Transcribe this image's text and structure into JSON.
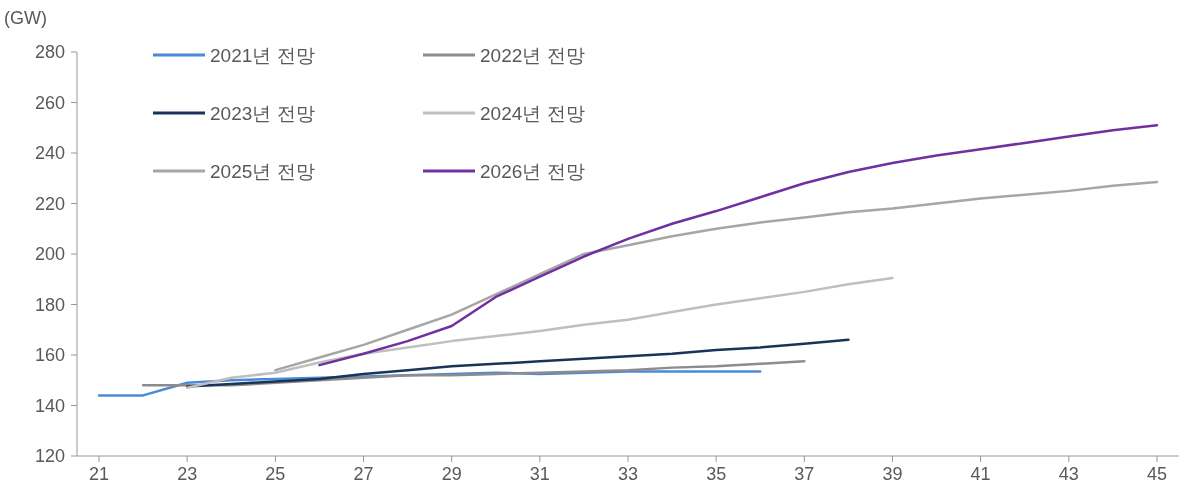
{
  "chart_data": {
    "type": "line",
    "ylabel": "(GW)",
    "xlim": [
      20.5,
      45.5
    ],
    "xticks": [
      21,
      23,
      25,
      27,
      29,
      31,
      33,
      35,
      37,
      39,
      41,
      43,
      45
    ],
    "ylim": [
      120,
      280
    ],
    "yticks": [
      120,
      140,
      160,
      180,
      200,
      220,
      240,
      260,
      280
    ],
    "legend": "top left",
    "series": [
      {
        "name": "2021년 전망",
        "color": "#4a8ad6",
        "x": [
          21,
          22,
          23,
          24,
          25,
          26,
          27,
          28,
          29,
          30,
          31,
          32,
          33,
          34,
          35,
          36
        ],
        "values": [
          144,
          144,
          149,
          150,
          150.5,
          151,
          151.5,
          152,
          152.5,
          153,
          152.5,
          153,
          153.5,
          153.5,
          153.5,
          153.5
        ]
      },
      {
        "name": "2022년 전망",
        "color": "#8c8c8c",
        "x": [
          22,
          23,
          24,
          25,
          26,
          27,
          28,
          29,
          30,
          31,
          32,
          33,
          34,
          35,
          36,
          37
        ],
        "values": [
          148,
          148,
          148,
          149,
          150,
          151,
          152,
          152,
          152.5,
          153,
          153.5,
          154,
          155,
          155.5,
          156.5,
          157.5
        ]
      },
      {
        "name": "2023년 전망",
        "color": "#1a3358",
        "x": [
          23,
          24,
          25,
          26,
          27,
          28,
          29,
          30,
          31,
          32,
          33,
          34,
          35,
          36,
          37,
          38
        ],
        "values": [
          147.5,
          148.5,
          149.5,
          150.5,
          152.5,
          154,
          155.5,
          156.5,
          157.5,
          158.5,
          159.5,
          160.5,
          162,
          163,
          164.5,
          166
        ]
      },
      {
        "name": "2024년 전망",
        "color": "#bfbfbf",
        "x": [
          23,
          24,
          25,
          26,
          27,
          28,
          29,
          30,
          31,
          32,
          33,
          34,
          35,
          36,
          37,
          38,
          39
        ],
        "values": [
          147,
          151,
          153,
          157,
          160.5,
          163,
          165.5,
          167.5,
          169.5,
          172,
          174,
          177,
          180,
          182.5,
          185,
          188,
          190.5
        ]
      },
      {
        "name": "2025년 전망",
        "color": "#a6a6a6",
        "x": [
          25,
          26,
          27,
          28,
          29,
          30,
          31,
          32,
          33,
          34,
          35,
          36,
          37,
          38,
          39,
          40,
          41,
          42,
          43,
          44,
          45
        ],
        "values": [
          154,
          159,
          164,
          170,
          176,
          184,
          192,
          200,
          203.5,
          207,
          210,
          212.5,
          214.5,
          216.5,
          218,
          220,
          222,
          223.5,
          225,
          227,
          228.5
        ]
      },
      {
        "name": "2026년 전망",
        "color": "#7030a0",
        "x": [
          26,
          27,
          28,
          29,
          30,
          31,
          32,
          33,
          34,
          35,
          36,
          37,
          38,
          39,
          40,
          41,
          42,
          43,
          44,
          45
        ],
        "values": [
          156,
          160.5,
          165.5,
          171.5,
          183,
          191,
          199,
          206,
          212,
          217,
          222.5,
          228,
          232.5,
          236,
          239,
          241.5,
          244,
          246.5,
          249,
          251
        ]
      }
    ]
  }
}
